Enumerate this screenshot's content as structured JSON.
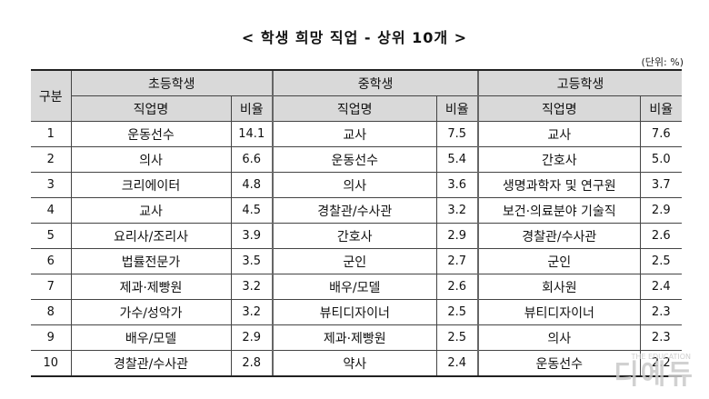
{
  "title": "< 학생 희망 직업 - 상위 10개 >",
  "unit": "(단위: %)",
  "headers": {
    "rank": "구분",
    "elementary": "초등학생",
    "middle": "중학생",
    "high": "고등학생",
    "job": "직업명",
    "ratio": "비율"
  },
  "rows": [
    {
      "rank": "1",
      "e_job": "운동선수",
      "e_ratio": "14.1",
      "m_job": "교사",
      "m_ratio": "7.5",
      "h_job": "교사",
      "h_ratio": "7.6"
    },
    {
      "rank": "2",
      "e_job": "의사",
      "e_ratio": "6.6",
      "m_job": "운동선수",
      "m_ratio": "5.4",
      "h_job": "간호사",
      "h_ratio": "5.0"
    },
    {
      "rank": "3",
      "e_job": "크리에이터",
      "e_ratio": "4.8",
      "m_job": "의사",
      "m_ratio": "3.6",
      "h_job": "생명과학자 및 연구원",
      "h_ratio": "3.7"
    },
    {
      "rank": "4",
      "e_job": "교사",
      "e_ratio": "4.5",
      "m_job": "경찰관/수사관",
      "m_ratio": "3.2",
      "h_job": "보건·의료분야 기술직",
      "h_ratio": "2.9"
    },
    {
      "rank": "5",
      "e_job": "요리사/조리사",
      "e_ratio": "3.9",
      "m_job": "간호사",
      "m_ratio": "2.9",
      "h_job": "경찰관/수사관",
      "h_ratio": "2.6"
    },
    {
      "rank": "6",
      "e_job": "법률전문가",
      "e_ratio": "3.5",
      "m_job": "군인",
      "m_ratio": "2.7",
      "h_job": "군인",
      "h_ratio": "2.5"
    },
    {
      "rank": "7",
      "e_job": "제과·제빵원",
      "e_ratio": "3.2",
      "m_job": "배우/모델",
      "m_ratio": "2.6",
      "h_job": "회사원",
      "h_ratio": "2.4"
    },
    {
      "rank": "8",
      "e_job": "가수/성악가",
      "e_ratio": "3.2",
      "m_job": "뷰티디자이너",
      "m_ratio": "2.5",
      "h_job": "뷰티디자이너",
      "h_ratio": "2.3"
    },
    {
      "rank": "9",
      "e_job": "배우/모델",
      "e_ratio": "2.9",
      "m_job": "제과·제빵원",
      "m_ratio": "2.5",
      "h_job": "의사",
      "h_ratio": "2.3"
    },
    {
      "rank": "10",
      "e_job": "경찰관/수사관",
      "e_ratio": "2.8",
      "m_job": "약사",
      "m_ratio": "2.4",
      "h_job": "운동선수",
      "h_ratio": "2.2"
    }
  ],
  "watermark": {
    "logo": "디에듀",
    "sub": "THE EDUCATION"
  }
}
